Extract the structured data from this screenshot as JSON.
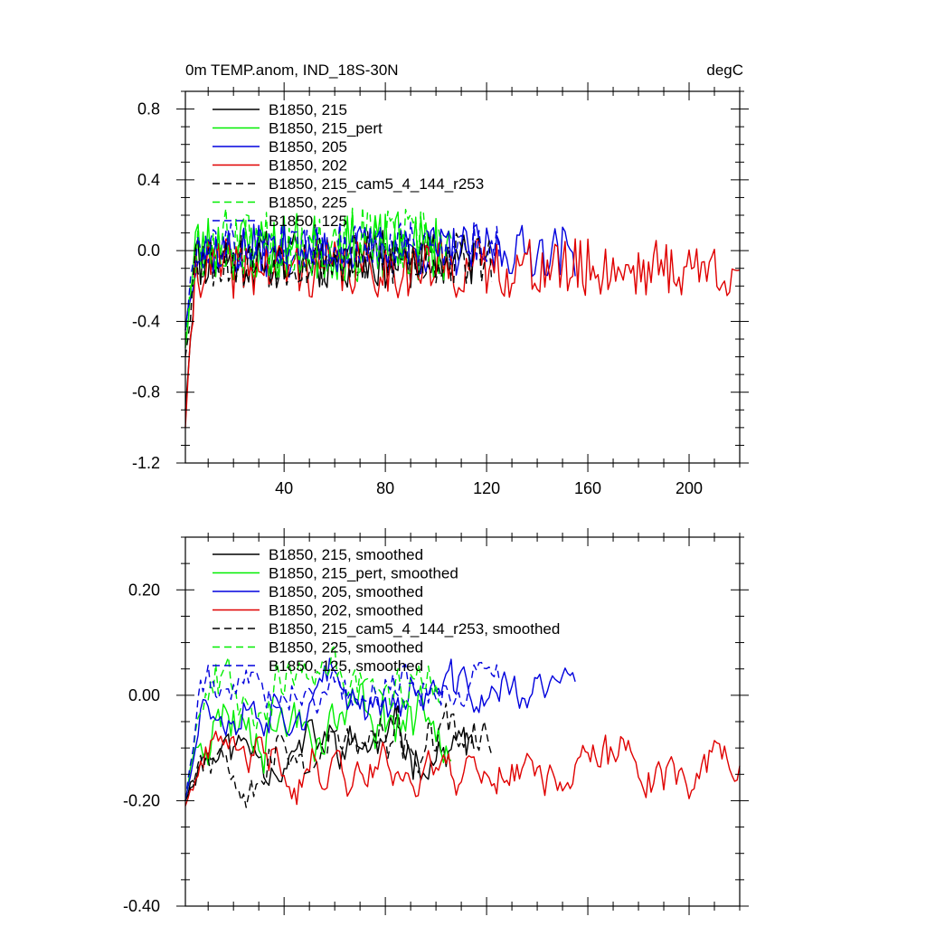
{
  "chart_data": [
    {
      "type": "line",
      "title": "0m TEMP.anom, IND_18S-30N",
      "units": "degC",
      "xlabel": "",
      "ylabel": "",
      "xlim": [
        1,
        220
      ],
      "ylim": [
        -1.2,
        0.9
      ],
      "xticks": [
        40,
        80,
        120,
        160,
        200
      ],
      "xtick_labels": [
        "40",
        "80",
        "120",
        "160",
        "200"
      ],
      "yticks": [
        0.8,
        0.4,
        0.0,
        -0.4,
        -0.8,
        -1.2
      ],
      "ytick_labels": [
        "0.8",
        "0.4",
        "0.0",
        "-0.4",
        "-0.8",
        "-1.2"
      ],
      "legend_position": "top-left",
      "series": [
        {
          "name": "B1850, 215",
          "color": "#000000",
          "dash": "solid",
          "length": 115,
          "mean": -0.05,
          "amp": 0.17,
          "start": -0.9,
          "seed": 11
        },
        {
          "name": "B1850, 215_pert",
          "color": "#00ee00",
          "dash": "solid",
          "length": 106,
          "mean": 0.02,
          "amp": 0.2,
          "start": -0.55,
          "seed": 23
        },
        {
          "name": "B1850, 205",
          "color": "#0000dd",
          "dash": "solid",
          "length": 155,
          "mean": 0.0,
          "amp": 0.15,
          "start": -0.45,
          "seed": 37
        },
        {
          "name": "B1850, 202",
          "color": "#e00000",
          "dash": "solid",
          "length": 220,
          "mean": -0.1,
          "amp": 0.17,
          "start": -1.0,
          "seed": 41
        },
        {
          "name": "B1850, 215_cam5_4_144_r253",
          "color": "#000000",
          "dash": "dashed",
          "length": 122,
          "mean": -0.05,
          "amp": 0.16,
          "start": -0.6,
          "seed": 53
        },
        {
          "name": "B1850, 225",
          "color": "#00ee00",
          "dash": "dashed",
          "length": 102,
          "mean": 0.05,
          "amp": 0.2,
          "start": -0.5,
          "seed": 67
        },
        {
          "name": "B1850, 125",
          "color": "#0000dd",
          "dash": "dashed",
          "length": 125,
          "mean": 0.03,
          "amp": 0.13,
          "start": -0.45,
          "seed": 79
        }
      ]
    },
    {
      "type": "line",
      "title": "",
      "xlabel": "",
      "ylabel": "",
      "xlim": [
        1,
        220
      ],
      "ylim": [
        -0.4,
        0.3
      ],
      "xticks": [
        40,
        80,
        120,
        160,
        200
      ],
      "xtick_labels": [],
      "yticks": [
        0.2,
        0.0,
        -0.2,
        -0.4
      ],
      "ytick_labels": [
        "0.20",
        "0.00",
        "-0.20",
        "-0.40"
      ],
      "legend_position": "top-left",
      "series": [
        {
          "name": "B1850, 215, smoothed",
          "color": "#000000",
          "dash": "solid",
          "length": 115,
          "mean": -0.1,
          "amp": 0.07,
          "start": -0.2,
          "seed": 11
        },
        {
          "name": "B1850, 215_pert, smoothed",
          "color": "#00ee00",
          "dash": "solid",
          "length": 106,
          "mean": -0.03,
          "amp": 0.09,
          "start": -0.2,
          "seed": 23
        },
        {
          "name": "B1850, 205, smoothed",
          "color": "#0000dd",
          "dash": "solid",
          "length": 155,
          "mean": 0.0,
          "amp": 0.07,
          "start": -0.2,
          "seed": 37
        },
        {
          "name": "B1850, 202, smoothed",
          "color": "#e00000",
          "dash": "solid",
          "length": 220,
          "mean": -0.13,
          "amp": 0.07,
          "start": -0.21,
          "seed": 41
        },
        {
          "name": "B1850, 215_cam5_4_144_r253, smoothed",
          "color": "#000000",
          "dash": "dashed",
          "length": 122,
          "mean": -0.1,
          "amp": 0.08,
          "start": -0.2,
          "seed": 53
        },
        {
          "name": "B1850, 225, smoothed",
          "color": "#00ee00",
          "dash": "dashed",
          "length": 102,
          "mean": 0.03,
          "amp": 0.08,
          "start": -0.2,
          "seed": 67
        },
        {
          "name": "B1850, 125, smoothed",
          "color": "#0000dd",
          "dash": "dashed",
          "length": 125,
          "mean": 0.02,
          "amp": 0.06,
          "start": -0.2,
          "seed": 79
        }
      ]
    }
  ]
}
